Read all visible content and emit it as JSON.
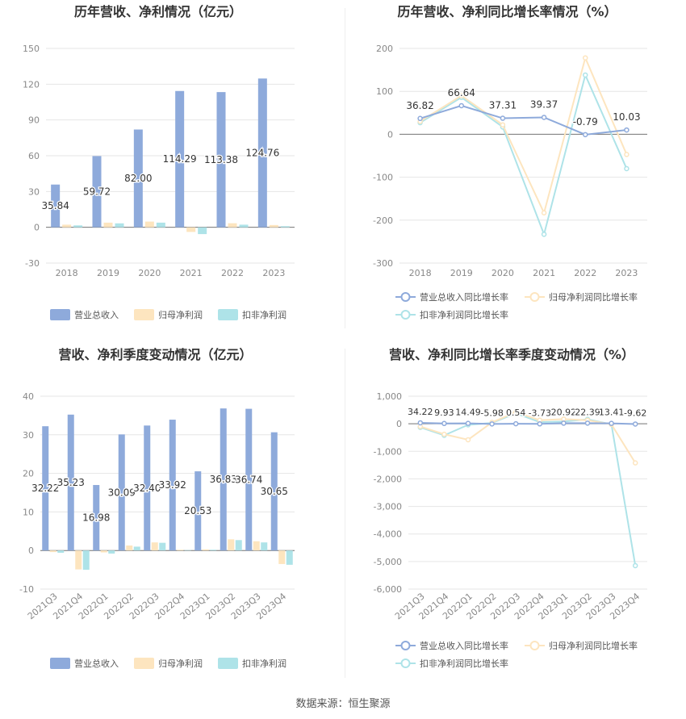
{
  "source_text": "数据来源：恒生聚源",
  "colors": {
    "revenue": "#8eaadb",
    "net_profit": "#fde5bf",
    "deducted_profit": "#aee3e8",
    "grid": "#e6e6e6",
    "axis_text": "#888888",
    "title_text": "#333333"
  },
  "chart_data": [
    {
      "type": "bar",
      "title": "历年营收、净利情况（亿元）",
      "categories": [
        "2018",
        "2019",
        "2020",
        "2021",
        "2022",
        "2023"
      ],
      "ylim": [
        -30,
        150
      ],
      "yticks": [
        -30,
        0,
        30,
        60,
        90,
        120,
        150
      ],
      "series": [
        {
          "name": "营业总收入",
          "values": [
            35.84,
            59.72,
            82.0,
            114.29,
            113.38,
            124.76
          ],
          "labels": [
            "35.84",
            "59.72",
            "82.00",
            "114.29",
            "113.38",
            "124.76"
          ]
        },
        {
          "name": "归母净利润",
          "values": [
            2.2,
            3.9,
            4.8,
            -3.9,
            3.4,
            1.9
          ]
        },
        {
          "name": "扣非净利润",
          "values": [
            1.6,
            3.3,
            3.9,
            -5.7,
            2.2,
            0.9
          ]
        }
      ],
      "legend": "bottom"
    },
    {
      "type": "line",
      "title": "历年营收、净利同比增长率情况（%）",
      "categories": [
        "2018",
        "2019",
        "2020",
        "2021",
        "2022",
        "2023"
      ],
      "ylim": [
        -300,
        200
      ],
      "yticks": [
        -300,
        -200,
        -100,
        0,
        100,
        200
      ],
      "series": [
        {
          "name": "营业总收入同比增长率",
          "values": [
            36.82,
            66.64,
            37.31,
            39.37,
            -0.79,
            10.03
          ],
          "labels": [
            "36.82",
            "66.64",
            "37.31",
            "39.37",
            "-0.79",
            "10.03"
          ]
        },
        {
          "name": "归母净利润同比增长率",
          "values": [
            30,
            90,
            22,
            -183,
            178,
            -47
          ]
        },
        {
          "name": "扣非净利润同比增长率",
          "values": [
            27,
            86,
            17,
            -233,
            138,
            -80
          ]
        }
      ],
      "legend": "bottom"
    },
    {
      "type": "bar",
      "title": "营收、净利季度变动情况（亿元）",
      "categories": [
        "2021Q3",
        "2021Q4",
        "2022Q1",
        "2022Q2",
        "2022Q3",
        "2022Q4",
        "2023Q1",
        "2023Q2",
        "2023Q3",
        "2023Q4"
      ],
      "ylim": [
        -10,
        40
      ],
      "yticks": [
        -10,
        0,
        10,
        20,
        30,
        40
      ],
      "series": [
        {
          "name": "营业总收入",
          "values": [
            32.22,
            35.23,
            16.98,
            30.09,
            32.4,
            33.92,
            20.53,
            36.83,
            36.74,
            30.65
          ],
          "labels": [
            "32.22",
            "35.23",
            "16.98",
            "30.09",
            "32.40",
            "33.92",
            "20.53",
            "36.83",
            "36.74",
            "30.65"
          ]
        },
        {
          "name": "归母净利润",
          "values": [
            -0.4,
            -4.9,
            -0.5,
            1.3,
            2.1,
            0.2,
            0.3,
            2.9,
            2.4,
            -3.5
          ]
        },
        {
          "name": "扣非净利润",
          "values": [
            -0.6,
            -5.0,
            -0.8,
            1.0,
            2.0,
            0.1,
            0.2,
            2.7,
            2.1,
            -3.7
          ]
        }
      ],
      "legend": "bottom"
    },
    {
      "type": "line",
      "title": "营收、净利同比增长率季度变动情况（%）",
      "categories": [
        "2021Q3",
        "2021Q4",
        "2022Q1",
        "2022Q2",
        "2022Q3",
        "2022Q4",
        "2023Q1",
        "2023Q2",
        "2023Q3",
        "2023Q4"
      ],
      "ylim": [
        -6000,
        1000
      ],
      "yticks": [
        -6000,
        -5000,
        -4000,
        -3000,
        -2000,
        -1000,
        0,
        1000
      ],
      "ytick_labels": [
        "-6,000",
        "-5,000",
        "-4,000",
        "-3,000",
        "-2,000",
        "-1,000",
        "0",
        "1,000"
      ],
      "series": [
        {
          "name": "营业总收入同比增长率",
          "values": [
            34.22,
            9.93,
            14.49,
            -5.98,
            0.54,
            -3.73,
            20.92,
            22.39,
            13.41,
            -9.62
          ],
          "labels": [
            "34.22",
            "9.93",
            "14.49",
            "-5.98",
            "0.54",
            "-3.73",
            "20.92",
            "22.39",
            "13.41",
            "-9.62"
          ]
        },
        {
          "name": "归母净利润同比增长率",
          "values": [
            -100,
            -380,
            -580,
            50,
            420,
            130,
            170,
            130,
            -20,
            -1420
          ]
        },
        {
          "name": "扣非净利润同比增长率",
          "values": [
            -130,
            -420,
            -40,
            30,
            380,
            60,
            80,
            160,
            -20,
            -5150
          ]
        }
      ],
      "legend": "bottom"
    }
  ]
}
